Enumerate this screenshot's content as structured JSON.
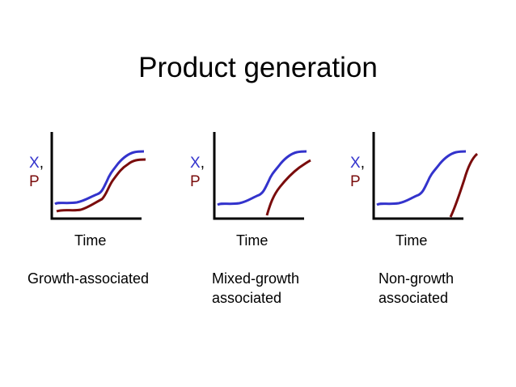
{
  "title": "Product generation",
  "colors": {
    "x_series": "#3333cc",
    "p_series": "#7a0c0c",
    "axis": "#000000"
  },
  "panels": [
    {
      "y_label_x": "X",
      "y_label_comma": ",",
      "y_label_p": "P",
      "x_label": "Time",
      "caption_line1": "Growth-associated",
      "caption_line2": ""
    },
    {
      "y_label_x": "X",
      "y_label_comma": ",",
      "y_label_p": "P",
      "x_label": "Time",
      "caption_line1": "Mixed-growth",
      "caption_line2": "associated"
    },
    {
      "y_label_x": "X",
      "y_label_comma": ",",
      "y_label_p": "P",
      "x_label": "Time",
      "caption_line1": "Non-growth",
      "caption_line2": "associated"
    }
  ]
}
